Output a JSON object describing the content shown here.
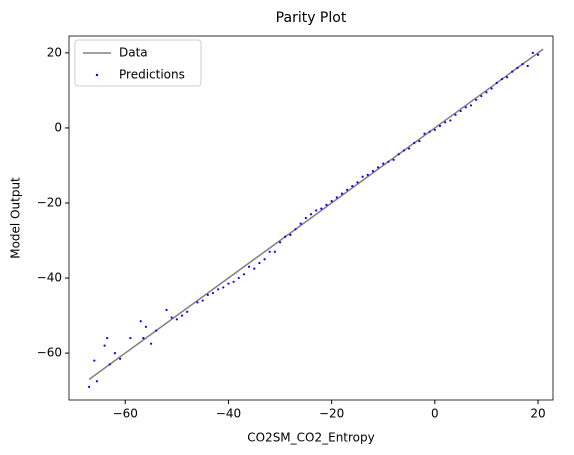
{
  "chart_data": {
    "type": "scatter",
    "title": "Parity Plot",
    "x_label": "CO2SM_CO2_Entropy",
    "y_label": "Model Output",
    "xlim": [
      -70.9,
      22.9
    ],
    "ylim": [
      -72.5,
      24.5
    ],
    "xticks": [
      {
        "value": -60,
        "label": "−60"
      },
      {
        "value": -40,
        "label": "−40"
      },
      {
        "value": -20,
        "label": "−20"
      },
      0,
      20
    ],
    "yticks": [
      {
        "value": -60,
        "label": "−60"
      },
      {
        "value": -40,
        "label": "−40"
      },
      {
        "value": -20,
        "label": "−20"
      },
      0,
      20
    ],
    "legend": "upper left",
    "series": [
      {
        "name": "Data",
        "type": "line",
        "color": "#808080",
        "x": [
          -67,
          21
        ],
        "values": [
          -67,
          21
        ]
      },
      {
        "name": "Predictions",
        "type": "scatter",
        "color": "#0000ff",
        "x": [
          -67,
          -66,
          -65.5,
          -64,
          -63.5,
          -63,
          -62,
          -61,
          -59,
          -57,
          -56.5,
          -56,
          -55,
          -54,
          -52,
          -51,
          -50,
          -49,
          -48,
          -46,
          -45,
          -44,
          -43,
          -42,
          -41,
          -40,
          -39,
          -38,
          -37,
          -36,
          -35,
          -34,
          -33,
          -32,
          -31,
          -30,
          -29,
          -28,
          -27,
          -26,
          -25,
          -24,
          -23,
          -22,
          -21,
          -20,
          -19,
          -18,
          -17,
          -16,
          -15,
          -14,
          -13,
          -12,
          -11,
          -10,
          -9,
          -8,
          -7,
          -6,
          -5,
          -4,
          -3,
          -2,
          -1,
          0,
          1,
          2,
          3,
          4,
          5,
          6,
          7,
          8,
          9,
          10,
          11,
          12,
          13,
          14,
          15,
          16,
          17,
          18,
          19,
          20
        ],
        "values": [
          -69,
          -62,
          -67.5,
          -58,
          -56,
          -63,
          -60,
          -61.5,
          -56,
          -51.5,
          -56,
          -53,
          -57.5,
          -54,
          -48.5,
          -50.5,
          -51,
          -50,
          -49,
          -46.5,
          -46,
          -44.5,
          -44,
          -43,
          -42.5,
          -41.5,
          -41,
          -40,
          -39,
          -37,
          -37.5,
          -36,
          -35,
          -33,
          -33,
          -30.5,
          -29,
          -28.5,
          -27,
          -25.5,
          -24,
          -23,
          -22,
          -21.5,
          -20.5,
          -19.5,
          -18.5,
          -17.5,
          -16.5,
          -15.5,
          -14.5,
          -13,
          -12.5,
          -11.5,
          -10.5,
          -9.5,
          -9,
          -8.5,
          -7,
          -6,
          -5.5,
          -4,
          -3.5,
          -1.5,
          -1,
          -0.5,
          0.5,
          1.5,
          2,
          3.5,
          4.5,
          5.5,
          6,
          7.5,
          8.5,
          9.5,
          10.5,
          12,
          13,
          13.5,
          15,
          16,
          17,
          16.5,
          20,
          19.5
        ]
      }
    ]
  }
}
